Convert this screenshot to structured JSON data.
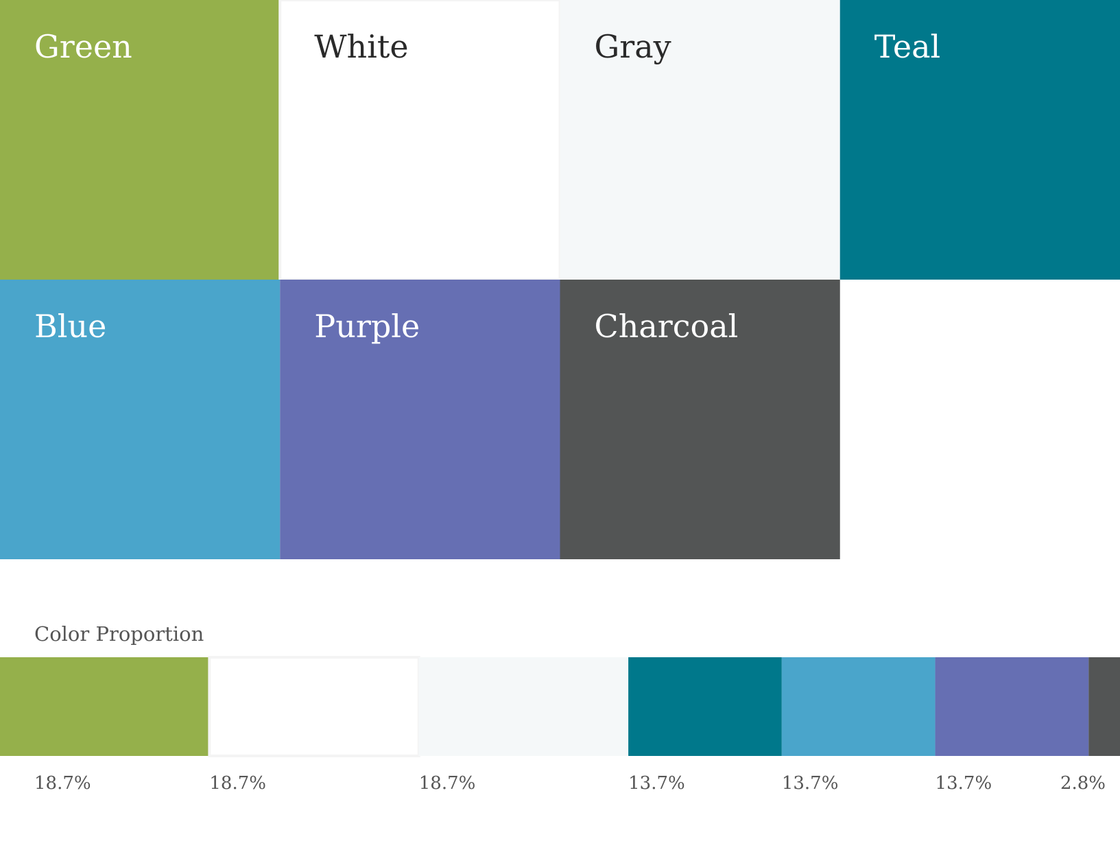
{
  "swatches": [
    {
      "name": "Green",
      "color": "#95b04b",
      "text_color": "#ffffff"
    },
    {
      "name": "White",
      "color": "#ffffff",
      "text_color": "#2a2a2a"
    },
    {
      "name": "Gray",
      "color": "#f5f8f9",
      "text_color": "#2a2a2a"
    },
    {
      "name": "Teal",
      "color": "#00788b",
      "text_color": "#ffffff"
    },
    {
      "name": "Blue",
      "color": "#4aa5cb",
      "text_color": "#ffffff"
    },
    {
      "name": "Purple",
      "color": "#666fb3",
      "text_color": "#ffffff"
    },
    {
      "name": "Charcoal",
      "color": "#535555",
      "text_color": "#ffffff"
    }
  ],
  "proportion": {
    "title": "Color Proportion",
    "segments": [
      {
        "value": 18.7,
        "label": "18.7%"
      },
      {
        "value": 18.7,
        "label": "18.7%"
      },
      {
        "value": 18.7,
        "label": "18.7%"
      },
      {
        "value": 13.7,
        "label": "13.7%"
      },
      {
        "value": 13.7,
        "label": "13.7%"
      },
      {
        "value": 13.7,
        "label": "13.7%"
      },
      {
        "value": 2.8,
        "label": "2.8%"
      }
    ]
  }
}
